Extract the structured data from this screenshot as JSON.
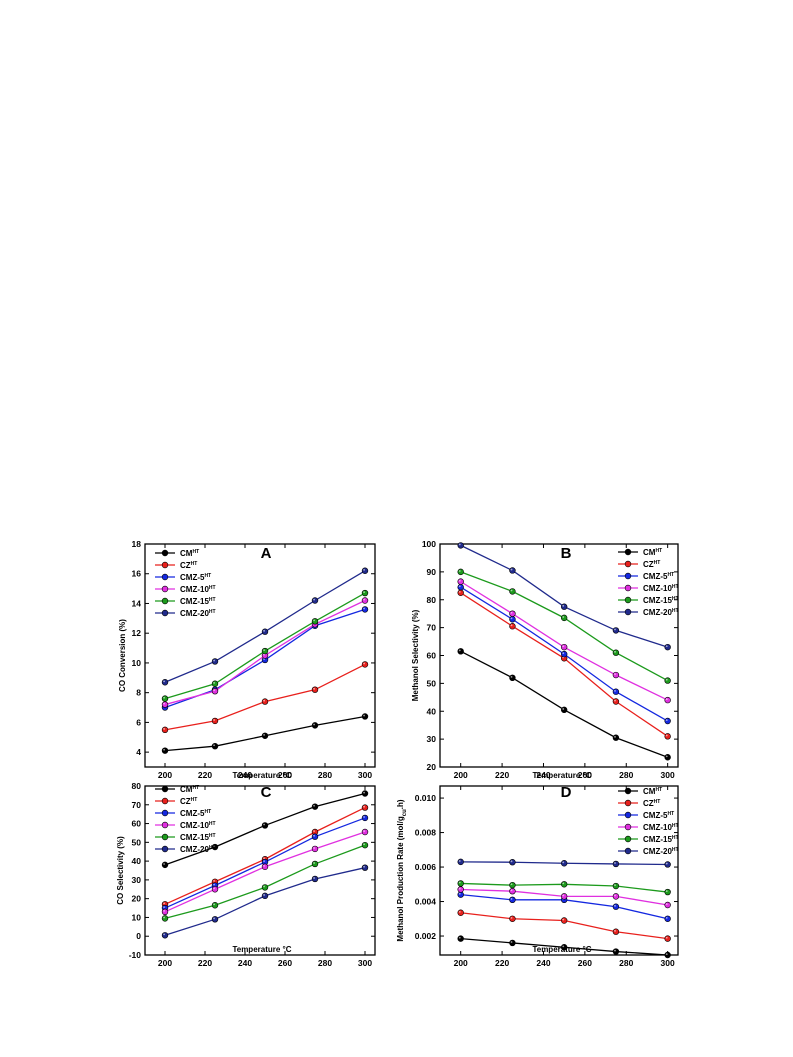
{
  "chart_data": [
    {
      "type": "line",
      "panel_label": "A",
      "xlabel_main": "Temperature",
      "xlabel_unit": "°C",
      "ylabel": "CO Conversion (%)",
      "xlim": [
        190,
        305
      ],
      "ylim": [
        3,
        18
      ],
      "xticks": [
        "200",
        "220",
        "240",
        "260",
        "280",
        "300"
      ],
      "yticks": [
        "4",
        "6",
        "8",
        "10",
        "12",
        "14",
        "16",
        "18"
      ],
      "legend_position": "top-left",
      "x": [
        200,
        225,
        250,
        275,
        300
      ],
      "series": [
        {
          "base": "CM",
          "sup": "HT",
          "color": "#000000",
          "values": [
            4.1,
            4.4,
            5.1,
            5.8,
            6.4
          ]
        },
        {
          "base": "CZ",
          "sup": "HT",
          "color": "#e8201c",
          "values": [
            5.5,
            6.1,
            7.4,
            8.2,
            9.9
          ]
        },
        {
          "base": "CMZ-5",
          "sup": "HT",
          "color": "#1428e0",
          "values": [
            7.0,
            8.2,
            10.2,
            12.5,
            13.6
          ]
        },
        {
          "base": "CMZ-10",
          "sup": "HT",
          "color": "#e030e0",
          "values": [
            7.2,
            8.1,
            10.5,
            12.6,
            14.2
          ]
        },
        {
          "base": "CMZ-15",
          "sup": "HT",
          "color": "#1c9a1c",
          "values": [
            7.6,
            8.6,
            10.8,
            12.8,
            14.7
          ]
        },
        {
          "base": "CMZ-20",
          "sup": "HT",
          "color": "#202a8c",
          "values": [
            8.7,
            10.1,
            12.1,
            14.2,
            16.2
          ]
        }
      ]
    },
    {
      "type": "line",
      "panel_label": "B",
      "xlabel_main": "Temperature",
      "xlabel_unit": "°C",
      "ylabel": "Methanol Selectivity (%)",
      "xlim": [
        190,
        305
      ],
      "ylim": [
        20,
        100
      ],
      "xticks": [
        "200",
        "220",
        "240",
        "260",
        "280",
        "300"
      ],
      "yticks": [
        "20",
        "30",
        "40",
        "50",
        "60",
        "70",
        "80",
        "90",
        "100"
      ],
      "legend_position": "top-right",
      "x": [
        200,
        225,
        250,
        275,
        300
      ],
      "series": [
        {
          "base": "CM",
          "sup": "HT",
          "color": "#000000",
          "values": [
            61.5,
            52,
            40.5,
            30.5,
            23.5
          ]
        },
        {
          "base": "CZ",
          "sup": "HT",
          "color": "#e8201c",
          "values": [
            82.5,
            70.5,
            59,
            43.5,
            31
          ]
        },
        {
          "base": "CMZ-5",
          "sup": "HT",
          "color": "#1428e0",
          "values": [
            84.5,
            73,
            60.5,
            47,
            36.5
          ]
        },
        {
          "base": "CMZ-10",
          "sup": "HT",
          "color": "#e030e0",
          "values": [
            86.5,
            75,
            63,
            53,
            44
          ]
        },
        {
          "base": "CMZ-15",
          "sup": "HT",
          "color": "#1c9a1c",
          "values": [
            90,
            83,
            73.5,
            61,
            51
          ]
        },
        {
          "base": "CMZ-20",
          "sup": "HT",
          "color": "#202a8c",
          "values": [
            99.5,
            90.5,
            77.5,
            69,
            63
          ]
        }
      ]
    },
    {
      "type": "line",
      "panel_label": "C",
      "xlabel_main": "Temperature",
      "xlabel_unit": "°C",
      "ylabel": "CO Selectivity (%)",
      "xlim": [
        190,
        305
      ],
      "ylim": [
        -10,
        80
      ],
      "xticks": [
        "200",
        "220",
        "240",
        "260",
        "280",
        "300"
      ],
      "yticks": [
        "-10",
        "0",
        "10",
        "20",
        "30",
        "40",
        "50",
        "60",
        "70",
        "80"
      ],
      "legend_position": "top-left",
      "x": [
        200,
        225,
        250,
        275,
        300
      ],
      "series": [
        {
          "base": "CM",
          "sup": "HT",
          "color": "#000000",
          "values": [
            38,
            47.5,
            59,
            69,
            76
          ]
        },
        {
          "base": "CZ",
          "sup": "HT",
          "color": "#e8201c",
          "values": [
            17,
            29,
            41,
            55.5,
            68.5
          ]
        },
        {
          "base": "CMZ-5",
          "sup": "HT",
          "color": "#1428e0",
          "values": [
            15,
            27,
            39.5,
            53,
            63
          ]
        },
        {
          "base": "CMZ-10",
          "sup": "HT",
          "color": "#e030e0",
          "values": [
            13,
            25,
            37,
            46.5,
            55.5
          ]
        },
        {
          "base": "CMZ-15",
          "sup": "HT",
          "color": "#1c9a1c",
          "values": [
            9.5,
            16.5,
            26,
            38.5,
            48.5
          ]
        },
        {
          "base": "CMZ-20",
          "sup": "HT",
          "color": "#202a8c",
          "values": [
            0.5,
            9,
            21.5,
            30.5,
            36.5
          ]
        }
      ]
    },
    {
      "type": "line",
      "panel_label": "D",
      "xlabel_main": "Temperature",
      "xlabel_unit": "°C",
      "ylabel_main": "Methanol Production Rate (mol/g",
      "ylabel_sub": "cu",
      "ylabel_tail": ".h)",
      "xlim": [
        190,
        305
      ],
      "ylim": [
        0.0009,
        0.0107
      ],
      "xticks": [
        "200",
        "220",
        "240",
        "260",
        "280",
        "300"
      ],
      "yticks": [
        "0.002",
        "0.004",
        "0.006",
        "0.008",
        "0.010"
      ],
      "legend_position": "top-right",
      "x": [
        200,
        225,
        250,
        275,
        300
      ],
      "series": [
        {
          "base": "CM",
          "sup": "HT",
          "color": "#000000",
          "values": [
            0.00185,
            0.0016,
            0.00135,
            0.0011,
            0.0009
          ]
        },
        {
          "base": "CZ",
          "sup": "HT",
          "color": "#e8201c",
          "values": [
            0.00335,
            0.003,
            0.0029,
            0.00225,
            0.00185
          ]
        },
        {
          "base": "CMZ-5",
          "sup": "HT",
          "color": "#1428e0",
          "values": [
            0.0044,
            0.0041,
            0.0041,
            0.0037,
            0.003
          ]
        },
        {
          "base": "CMZ-10",
          "sup": "HT",
          "color": "#e030e0",
          "values": [
            0.0047,
            0.0046,
            0.0043,
            0.0043,
            0.0038
          ]
        },
        {
          "base": "CMZ-15",
          "sup": "HT",
          "color": "#1c9a1c",
          "values": [
            0.00505,
            0.00495,
            0.005,
            0.0049,
            0.00455
          ]
        },
        {
          "base": "CMZ-20",
          "sup": "HT",
          "color": "#202a8c",
          "values": [
            0.0063,
            0.00628,
            0.00622,
            0.00618,
            0.00615
          ]
        }
      ]
    }
  ]
}
